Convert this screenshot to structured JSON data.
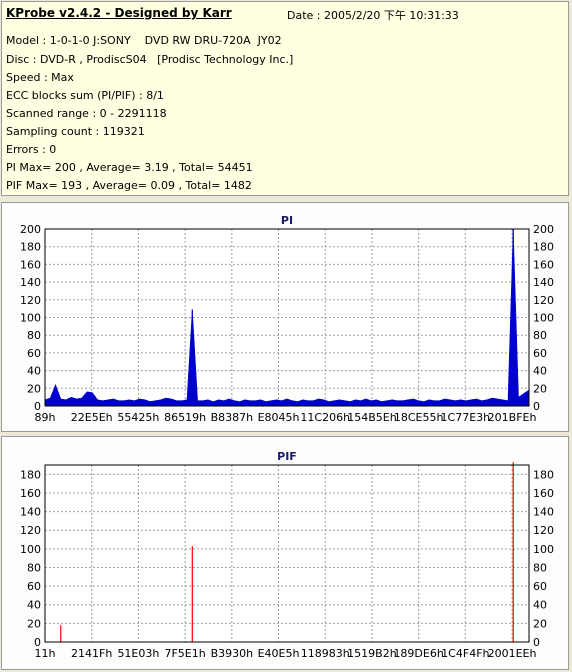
{
  "header": {
    "app_title": "KProbe v2.4.2 - Designed by Karr",
    "date_text": "Date : 2005/2/20 下午 10:31:33"
  },
  "info_lines": [
    "Model : 1-0-1-0 J:SONY    DVD RW DRU-720A  JY02",
    "Disc : DVD-R , ProdiscS04   [Prodisc Technology Inc.]",
    "Speed : Max",
    "ECC blocks sum (PI/PIF) : 8/1",
    "Scanned range : 0 - 2291118",
    "Sampling count : 119321",
    "Errors : 0",
    "PI Max= 200 , Average= 3.19 , Total= 54451",
    "PIF Max= 193 , Average= 0.09 , Total= 1482"
  ],
  "colors": {
    "pi_series": "#0000cc",
    "pif_series": "#ff0000",
    "grid": "#a0a0a0",
    "background": "#ece9d8",
    "info_background": "#ffffe1"
  },
  "chart_data": [
    {
      "type": "area",
      "title": "PI",
      "xlabel": "",
      "ylabel": "",
      "ylim": [
        0,
        200
      ],
      "yticks": [
        0,
        20,
        40,
        60,
        80,
        100,
        120,
        140,
        160,
        180,
        200
      ],
      "x_tick_labels": [
        "89h",
        "22E5Eh",
        "55425h",
        "86519h",
        "B8387h",
        "E8045h",
        "11C206h",
        "154B5Eh",
        "18CE55h",
        "1C77E3h",
        "201BFEh"
      ],
      "grid": true,
      "series": [
        {
          "values": [
            7,
            9,
            24,
            8,
            7,
            10,
            8,
            9,
            16,
            15,
            7,
            6,
            7,
            8,
            6,
            6,
            7,
            6,
            8,
            7,
            5,
            6,
            7,
            9,
            8,
            6,
            6,
            7,
            109,
            6,
            6,
            7,
            5,
            7,
            6,
            8,
            6,
            5,
            7,
            6,
            6,
            7,
            5,
            6,
            7,
            6,
            8,
            6,
            5,
            7,
            6,
            6,
            8,
            7,
            5,
            6,
            7,
            6,
            5,
            7,
            6,
            8,
            6,
            7,
            5,
            6,
            7,
            6,
            6,
            7,
            8,
            6,
            5,
            7,
            6,
            6,
            8,
            7,
            6,
            7,
            6,
            7,
            8,
            6,
            7,
            9,
            8,
            7,
            6,
            200,
            10,
            14,
            18
          ]
        }
      ]
    },
    {
      "type": "bar",
      "title": "PIF",
      "xlabel": "",
      "ylabel": "",
      "ylim": [
        0,
        190
      ],
      "yticks": [
        0,
        20,
        40,
        60,
        80,
        100,
        120,
        140,
        160,
        180
      ],
      "x_tick_labels": [
        "11h",
        "2141Fh",
        "51E03h",
        "7F5E1h",
        "B3930h",
        "E40E5h",
        "118983h",
        "1519B2h",
        "189DE6h",
        "1C4F4Fh",
        "2001EEh"
      ],
      "grid": true,
      "series": [
        {
          "values": [
            0,
            0,
            0,
            18,
            0,
            0,
            0,
            0,
            0,
            0,
            0,
            0,
            0,
            0,
            0,
            0,
            0,
            0,
            0,
            0,
            0,
            0,
            0,
            0,
            0,
            0,
            0,
            0,
            103,
            0,
            0,
            0,
            0,
            0,
            0,
            0,
            0,
            0,
            0,
            0,
            0,
            0,
            0,
            0,
            0,
            0,
            0,
            0,
            0,
            0,
            0,
            0,
            0,
            0,
            0,
            0,
            0,
            0,
            0,
            0,
            0,
            0,
            0,
            0,
            0,
            0,
            0,
            0,
            0,
            0,
            0,
            0,
            0,
            0,
            0,
            0,
            0,
            0,
            0,
            0,
            0,
            0,
            0,
            0,
            0,
            0,
            0,
            0,
            0,
            193,
            0,
            0,
            2
          ]
        }
      ]
    }
  ]
}
